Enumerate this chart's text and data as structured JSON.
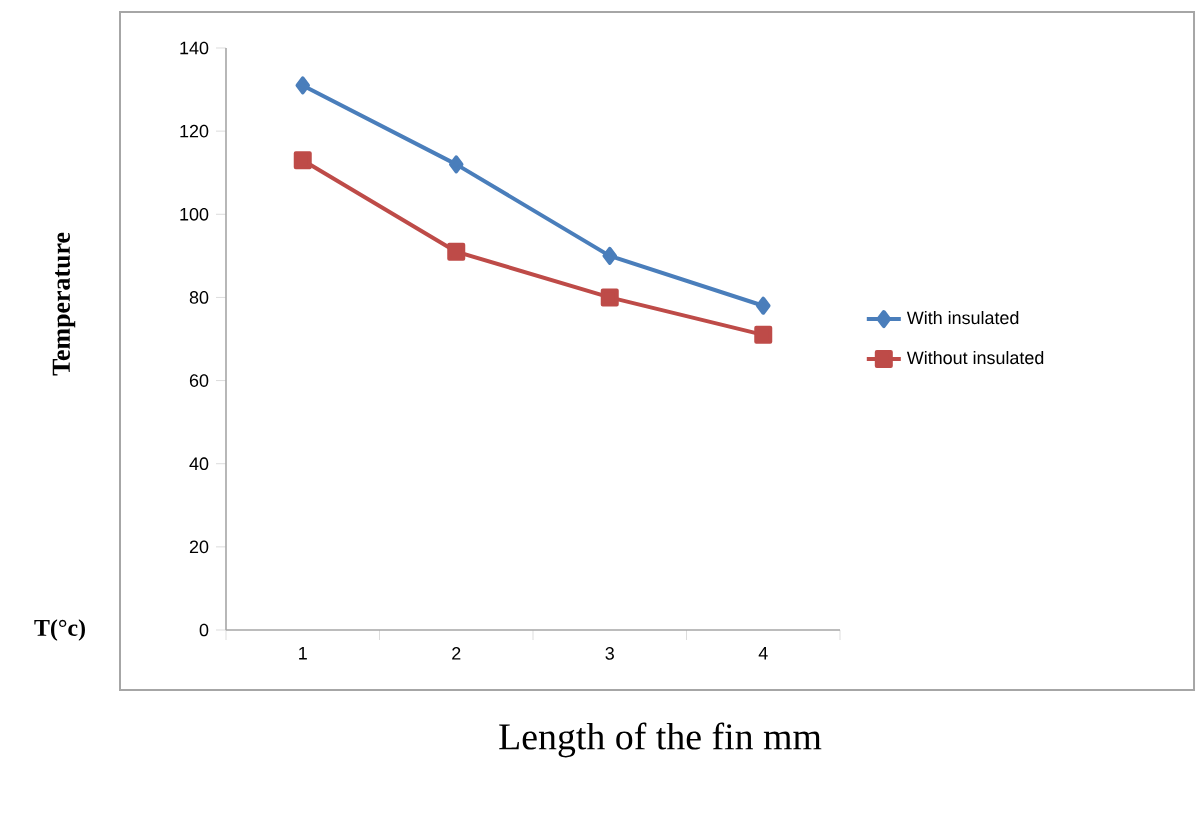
{
  "chart_data": {
    "type": "line",
    "xlabel": "Length of the fin  mm",
    "ylabel": "Temperature",
    "annotations": [
      "T(°c)"
    ],
    "categories": [
      "1",
      "2",
      "3",
      "4"
    ],
    "series": [
      {
        "name": "With insulated",
        "color": "#4a7ebb",
        "marker": "diamond",
        "values": [
          131,
          112,
          90,
          78
        ]
      },
      {
        "name": "Without insulated",
        "color": "#be4b48",
        "marker": "square",
        "values": [
          113,
          91,
          80,
          71
        ]
      }
    ],
    "ylim": [
      0,
      140
    ],
    "yticks": [
      0,
      20,
      40,
      60,
      80,
      100,
      120,
      140
    ],
    "grid": false,
    "legend": "right",
    "line_style": "solid"
  }
}
